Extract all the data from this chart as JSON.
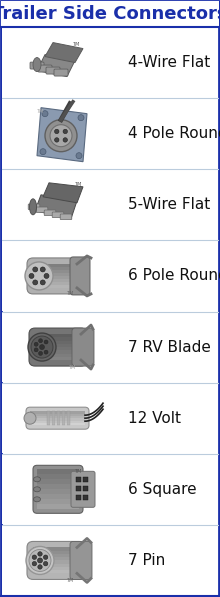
{
  "title": "Trailer Side Connectors",
  "title_color": "#1a2faa",
  "border_color": "#1a2faa",
  "bg_color": "#ffffff",
  "row_separator_color": "#bbccdd",
  "labels": [
    "4-Wire Flat",
    "4 Pole Round",
    "5-Wire Flat",
    "6 Pole Round",
    "7 RV Blade",
    "12 Volt",
    "6 Square",
    "7 Pin"
  ],
  "label_color": "#111111",
  "label_fontsize": 11,
  "title_fontsize": 13,
  "figsize": [
    2.2,
    5.97
  ],
  "dpi": 100
}
